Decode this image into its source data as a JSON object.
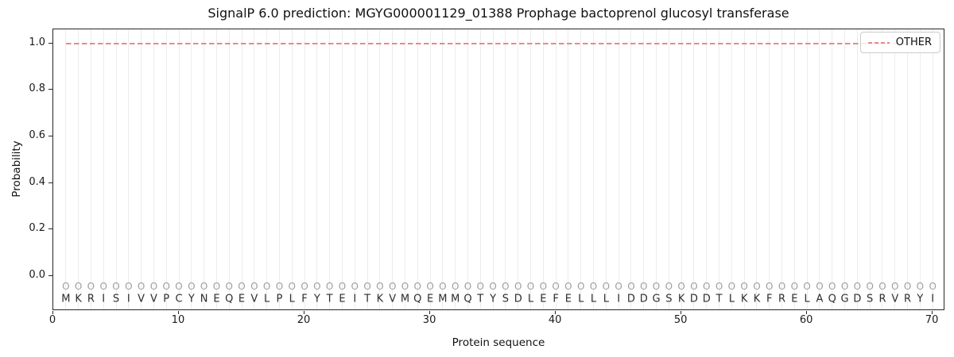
{
  "title": "SignalP 6.0 prediction: MGYG000001129_01388 Prophage bactoprenol glucosyl transferase",
  "axes": {
    "xlabel": "Protein sequence",
    "ylabel": "Probability",
    "x_ticks": [
      0,
      10,
      20,
      30,
      40,
      50,
      60,
      70
    ],
    "y_ticks": [
      0.0,
      0.2,
      0.4,
      0.6,
      0.8,
      1.0
    ]
  },
  "legend": {
    "position": "upper right",
    "entries": [
      {
        "label": "OTHER",
        "line_style": "dashed",
        "color": "#ea8888"
      }
    ]
  },
  "chart_data": {
    "type": "line",
    "title": "SignalP 6.0 prediction: MGYG000001129_01388 Prophage bactoprenol glucosyl transferase",
    "xlabel": "Protein sequence",
    "ylabel": "Probability",
    "xlim": [
      0,
      71
    ],
    "ylim": [
      -0.15,
      1.06
    ],
    "x_ticks": [
      0,
      10,
      20,
      30,
      40,
      50,
      60,
      70
    ],
    "y_ticks": [
      0.0,
      0.2,
      0.4,
      0.6,
      0.8,
      1.0
    ],
    "grid": "vertical gridline at every residue position",
    "legend_position": "upper right",
    "series": [
      {
        "name": "OTHER",
        "style": "dashed",
        "color": "#ea8888",
        "x": [
          1,
          2,
          3,
          4,
          5,
          6,
          7,
          8,
          9,
          10,
          11,
          12,
          13,
          14,
          15,
          16,
          17,
          18,
          19,
          20,
          21,
          22,
          23,
          24,
          25,
          26,
          27,
          28,
          29,
          30,
          31,
          32,
          33,
          34,
          35,
          36,
          37,
          38,
          39,
          40,
          41,
          42,
          43,
          44,
          45,
          46,
          47,
          48,
          49,
          50,
          51,
          52,
          53,
          54,
          55,
          56,
          57,
          58,
          59,
          60,
          61,
          62,
          63,
          64,
          65,
          66,
          67,
          68,
          69,
          70
        ],
        "values": [
          1.0,
          1.0,
          1.0,
          1.0,
          1.0,
          1.0,
          1.0,
          1.0,
          1.0,
          1.0,
          1.0,
          1.0,
          1.0,
          1.0,
          1.0,
          1.0,
          1.0,
          1.0,
          1.0,
          1.0,
          1.0,
          1.0,
          1.0,
          1.0,
          1.0,
          1.0,
          1.0,
          1.0,
          1.0,
          1.0,
          1.0,
          1.0,
          1.0,
          1.0,
          1.0,
          1.0,
          1.0,
          1.0,
          1.0,
          1.0,
          1.0,
          1.0,
          1.0,
          1.0,
          1.0,
          1.0,
          1.0,
          1.0,
          1.0,
          1.0,
          1.0,
          1.0,
          1.0,
          1.0,
          1.0,
          1.0,
          1.0,
          1.0,
          1.0,
          1.0,
          1.0,
          1.0,
          1.0,
          1.0,
          1.0,
          1.0,
          1.0,
          1.0,
          1.0,
          1.0
        ]
      }
    ],
    "sequence": {
      "residues": "MKRISIVVPCYNEQEVLPLFYTEITKVMQEMMQTYSDLEFELLLIDDGSKDDTLKKFRELAQGDSRVRYI",
      "region_labels": "OOOOOOOOOOOOOOOOOOOOOOOOOOOOOOOOOOOOOOOOOOOOOOOOOOOOOOOOOOOOOOOOOOOOOO",
      "region_label_y": -0.045,
      "residue_y": -0.1
    }
  },
  "colors": {
    "line": "#ea8888",
    "grid": "#ececec",
    "marker": "#9e9e9e",
    "residue_text": "#2d2d2d",
    "spine": "#262626",
    "background": "#ffffff",
    "legend_border": "#cccccc"
  }
}
